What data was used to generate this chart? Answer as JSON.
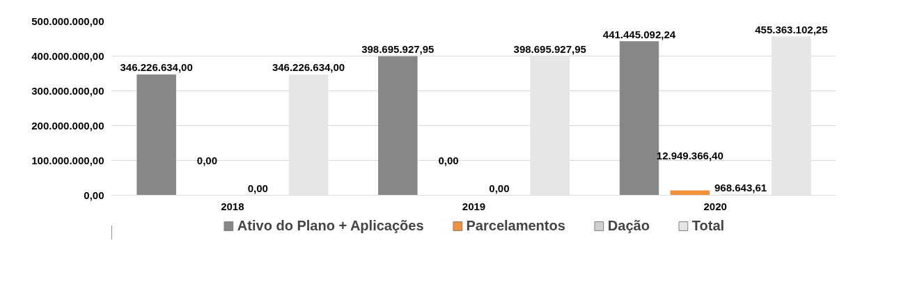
{
  "chart_data": {
    "type": "bar",
    "categories": [
      "2018",
      "2019",
      "2020"
    ],
    "series": [
      {
        "name": "Ativo do Plano + Aplicações",
        "color": "#878787",
        "values": [
          346226634.0,
          398695927.95,
          441445092.24
        ],
        "value_labels": [
          "346.226.634,00",
          "398.695.927,95",
          "441.445.092,24"
        ]
      },
      {
        "name": "Parcelamentos",
        "color": "#f0923a",
        "values": [
          0,
          0,
          12949366.4
        ],
        "value_labels": [
          "0,00",
          "0,00",
          "12.949.366,40"
        ]
      },
      {
        "name": "Dação",
        "color": "#d0d0d0",
        "values": [
          0,
          0,
          968643.61
        ],
        "value_labels": [
          "0,00",
          "0,00",
          "968.643,61"
        ]
      },
      {
        "name": "Total",
        "color": "#e6e6e6",
        "values": [
          346226634.0,
          398695927.95,
          455363102.25
        ],
        "value_labels": [
          "346.226.634,00",
          "398.695.927,95",
          "455.363.102,25"
        ]
      }
    ],
    "ylim": [
      0,
      500000000
    ],
    "yticks": [
      {
        "value": 0,
        "label": "0,00"
      },
      {
        "value": 100000000,
        "label": "100.000.000,00"
      },
      {
        "value": 200000000,
        "label": "200.000.000,00"
      },
      {
        "value": 300000000,
        "label": "300.000.000,00"
      },
      {
        "value": 400000000,
        "label": "400.000.000,00"
      },
      {
        "value": 500000000,
        "label": "500.000.000,00"
      }
    ],
    "grid": "y",
    "legend": "bottom"
  }
}
